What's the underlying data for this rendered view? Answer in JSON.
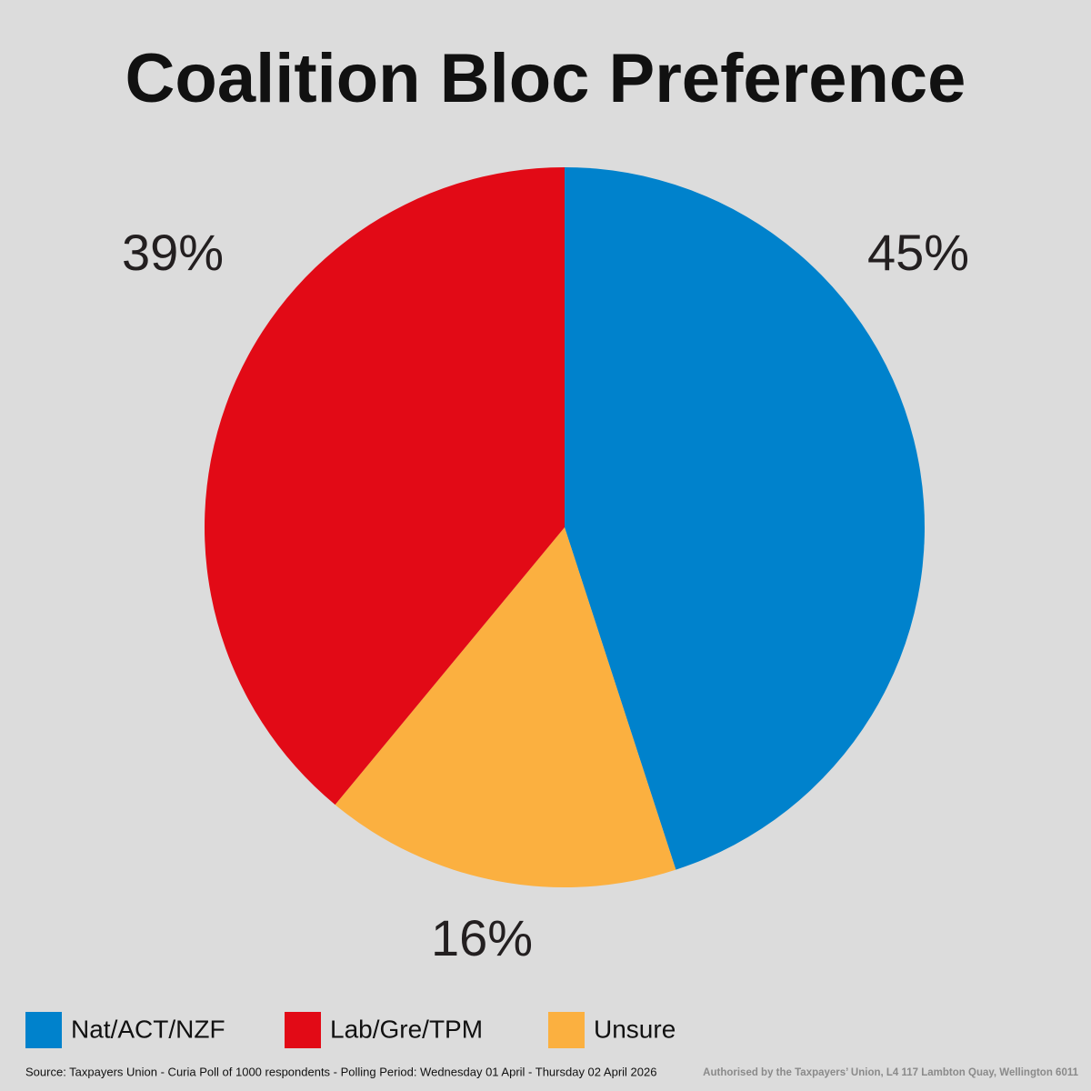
{
  "chart_data": {
    "type": "pie",
    "title": "Coalition Bloc Preference",
    "categories": [
      "Nat/ACT/NZF",
      "Lab/Gre/TPM",
      "Unsure"
    ],
    "values": [
      45,
      39,
      16
    ],
    "value_labels": [
      "45%",
      "39%",
      "16%"
    ],
    "colors": [
      "#0082cc",
      "#e20a16",
      "#fbb040"
    ],
    "source": "Source: Taxpayers Union - Curia Poll of 1000 respondents - Polling Period: Wednesday 01 April - Thursday 02 April 2026",
    "authorisation": "Authorised by the Taxpayers’ Union, L4 117 Lambton Quay, Wellington 6011"
  }
}
